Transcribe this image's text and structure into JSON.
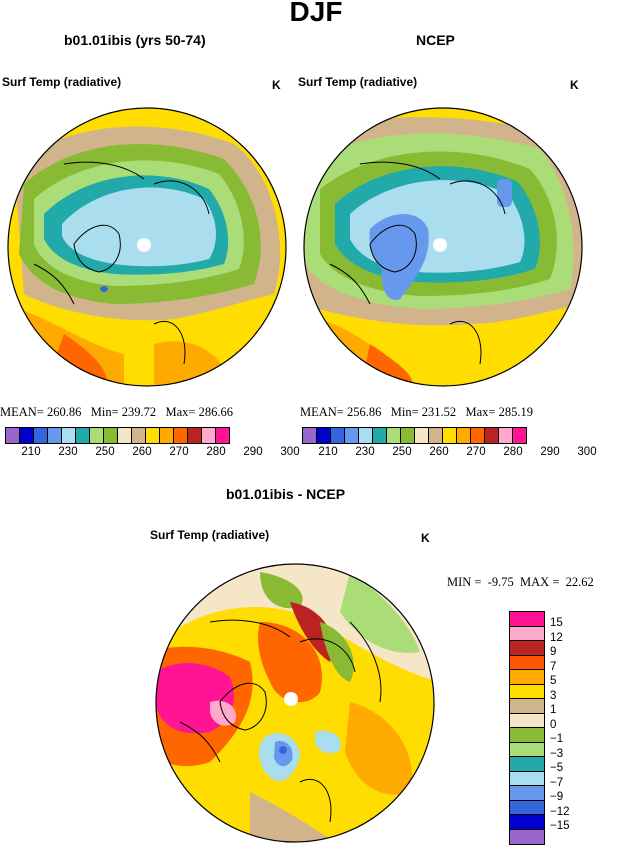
{
  "figure": {
    "title": "DJF",
    "panel_left_title": "b01.01ibis (yrs 50-74)",
    "panel_right_title": "NCEP",
    "panel_bottom_title": "b01.01ibis - NCEP"
  },
  "maps": [
    {
      "id": "model",
      "variable_label": "Surf Temp (radiative)",
      "unit": "K",
      "stats": {
        "mean_label": "MEAN=",
        "mean": "260.86",
        "min_label": "Min=",
        "min": "239.72",
        "max_label": "Max=",
        "max": "286.66"
      }
    },
    {
      "id": "ncep",
      "variable_label": "Surf Temp (radiative)",
      "unit": "K",
      "stats": {
        "mean_label": "MEAN=",
        "mean": "256.86",
        "min_label": "Min=",
        "min": "231.52",
        "max_label": "Max=",
        "max": "285.19"
      }
    },
    {
      "id": "difference",
      "variable_label": "Surf Temp (radiative)",
      "unit": "K",
      "stats": {
        "min_label": "MIN =",
        "min": "-9.75",
        "max_label": "MAX =",
        "max": "22.62"
      }
    }
  ],
  "abs_colorbar": {
    "colors": [
      "#9966cc",
      "#0000cc",
      "#3366dd",
      "#6699ee",
      "#aaddee",
      "#22aaaa",
      "#aadd77",
      "#88bb33",
      "#f5e6c8",
      "#d2b48c",
      "#ffdd00",
      "#ffaa00",
      "#ff6600",
      "#bb2222",
      "#ffaacc",
      "#ff1493"
    ],
    "labels": [
      "210",
      "230",
      "250",
      "260",
      "270",
      "280",
      "290",
      "300"
    ]
  },
  "diff_colorbar": {
    "colors": [
      "#ff1493",
      "#ffaacc",
      "#bb2222",
      "#ff5500",
      "#ffaa00",
      "#ffdd00",
      "#d2b48c",
      "#f5e6c8",
      "#88bb33",
      "#aadd77",
      "#22aaaa",
      "#aaddee",
      "#6699ee",
      "#3366dd",
      "#0000cc",
      "#9966cc"
    ],
    "labels": [
      "15",
      "12",
      "9",
      "7",
      "5",
      "3",
      "1",
      "0",
      "−1",
      "−3",
      "−5",
      "−7",
      "−9",
      "−12",
      "−15"
    ]
  }
}
